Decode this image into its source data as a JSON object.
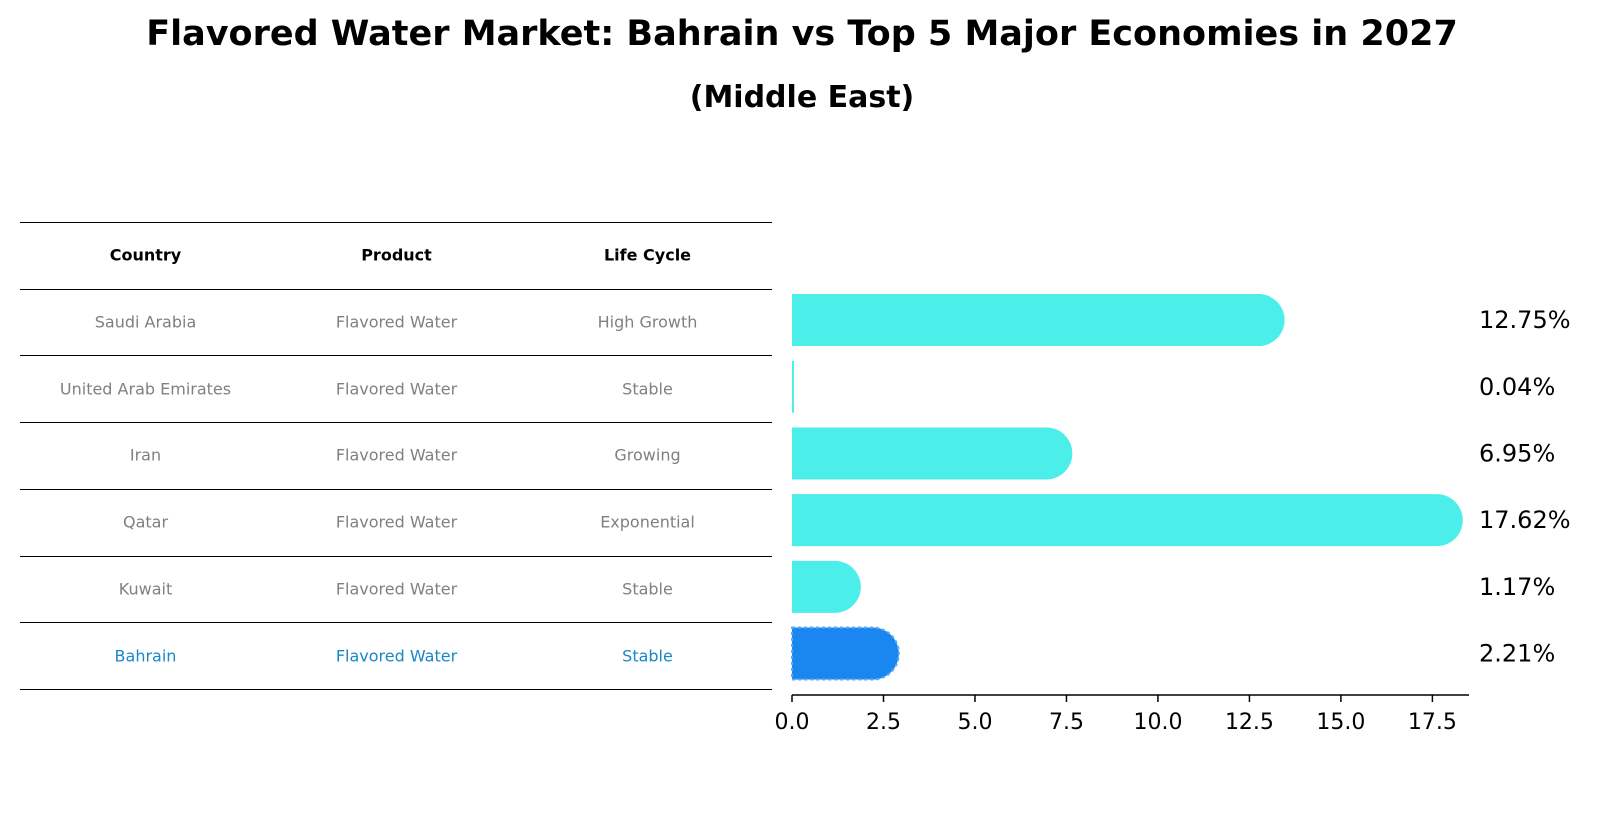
{
  "title": "Flavored Water Market: Bahrain vs Top 5 Major Economies in 2027",
  "subtitle": "(Middle East)",
  "table": {
    "headers": [
      "Country",
      "Product",
      "Life Cycle"
    ],
    "rows": [
      [
        "Saudi Arabia",
        "Flavored Water",
        "High Growth"
      ],
      [
        "United Arab Emirates",
        "Flavored Water",
        "Stable"
      ],
      [
        "Iran",
        "Flavored Water",
        "Growing"
      ],
      [
        "Qatar",
        "Flavored Water",
        "Exponential"
      ],
      [
        "Kuwait",
        "Flavored Water",
        "Stable"
      ],
      [
        "Bahrain",
        "Flavored Water",
        "Stable"
      ]
    ],
    "highlight_row": 5
  },
  "chart_data": {
    "type": "bar",
    "orientation": "horizontal",
    "categories": [
      "Saudi Arabia",
      "United Arab Emirates",
      "Iran",
      "Qatar",
      "Kuwait",
      "Bahrain"
    ],
    "values": [
      12.75,
      0.04,
      6.95,
      17.62,
      1.17,
      2.21
    ],
    "value_labels": [
      "12.75%",
      "0.04%",
      "6.95%",
      "17.62%",
      "1.17%",
      "2.21%"
    ],
    "xlim": [
      0,
      18.5
    ],
    "xticks": [
      0.0,
      2.5,
      5.0,
      7.5,
      10.0,
      12.5,
      15.0,
      17.5
    ],
    "xtick_labels": [
      "0.0",
      "2.5",
      "5.0",
      "7.5",
      "10.0",
      "12.5",
      "15.0",
      "17.5"
    ],
    "highlight_index": 5,
    "colors": {
      "bar": "#4ceeea",
      "highlight": "#1a87f0"
    },
    "grid": false
  }
}
